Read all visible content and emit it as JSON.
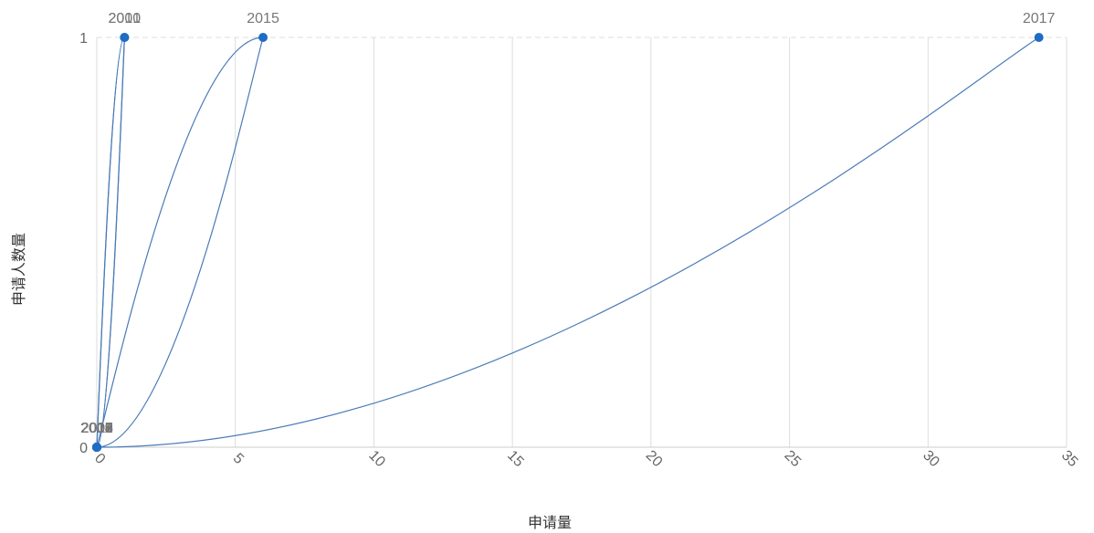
{
  "chart_data": {
    "type": "scatter",
    "title": "",
    "xlabel": "申请量",
    "ylabel": "申请人数量",
    "xlim": [
      0,
      35
    ],
    "ylim": [
      0,
      1
    ],
    "x_ticks": [
      "0",
      "5",
      "10",
      "15",
      "20",
      "25",
      "30",
      "35"
    ],
    "y_ticks": [
      "0",
      "1"
    ],
    "grid": {
      "vertical": true,
      "horizontal": "dashed at top"
    },
    "connect_points": "year order, smooth curves",
    "points": [
      {
        "label": "2000",
        "x": 0,
        "y": 0
      },
      {
        "label": "2001",
        "x": 1,
        "y": 1
      },
      {
        "label": "2002",
        "x": 0,
        "y": 0
      },
      {
        "label": "2003",
        "x": 0,
        "y": 0
      },
      {
        "label": "2004",
        "x": 0,
        "y": 0
      },
      {
        "label": "2005",
        "x": 0,
        "y": 0
      },
      {
        "label": "2006",
        "x": 0,
        "y": 0
      },
      {
        "label": "2007",
        "x": 0,
        "y": 0
      },
      {
        "label": "2008",
        "x": 0,
        "y": 0
      },
      {
        "label": "2009",
        "x": 0,
        "y": 0
      },
      {
        "label": "2010",
        "x": 1,
        "y": 1
      },
      {
        "label": "2011",
        "x": 0,
        "y": 0
      },
      {
        "label": "2012",
        "x": 0,
        "y": 0
      },
      {
        "label": "2013",
        "x": 0,
        "y": 0
      },
      {
        "label": "2014",
        "x": 0,
        "y": 0
      },
      {
        "label": "2015",
        "x": 6,
        "y": 1
      },
      {
        "label": "2016",
        "x": 0,
        "y": 0
      },
      {
        "label": "2017",
        "x": 34,
        "y": 1
      }
    ]
  },
  "colors": {
    "line": "#4a7bb7",
    "point": "#1f6cc4",
    "grid": "#dddddd"
  }
}
